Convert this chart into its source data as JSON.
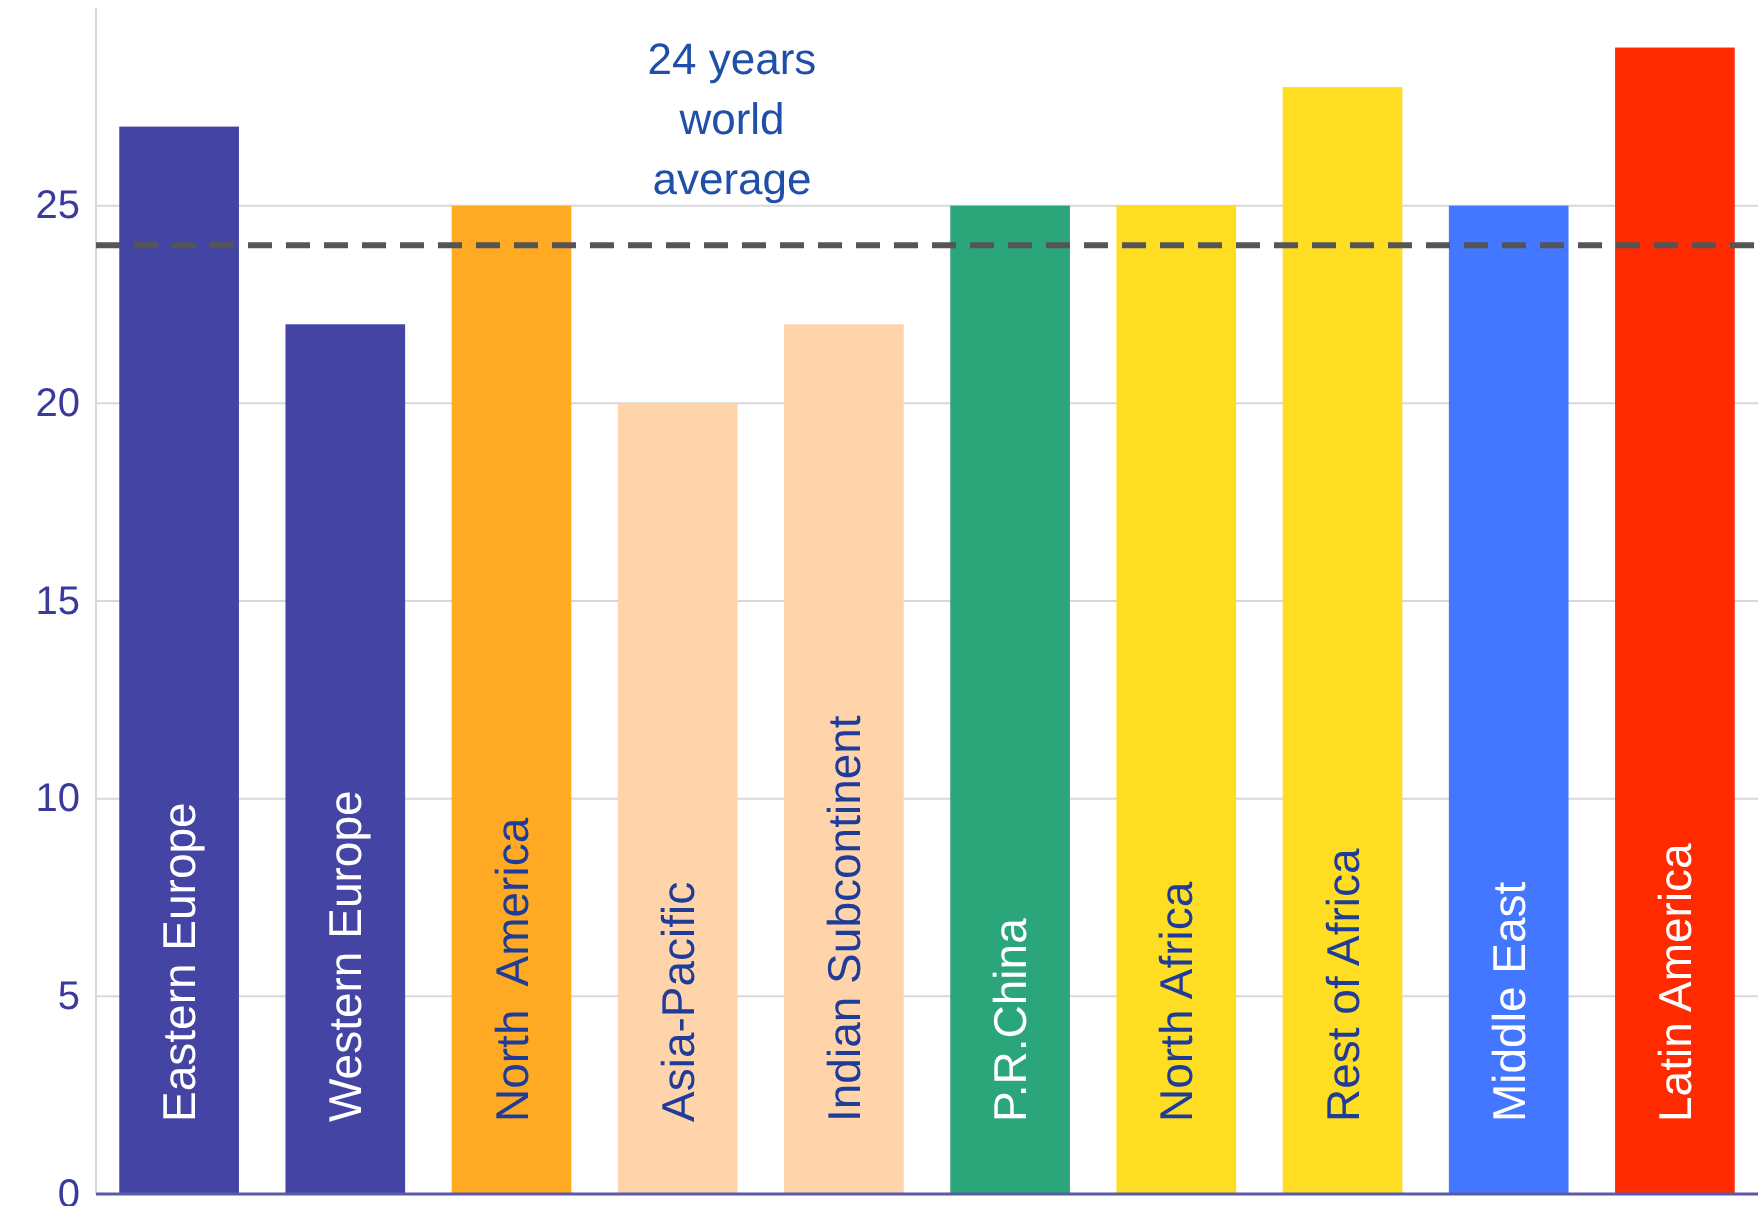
{
  "chart_data": {
    "type": "bar",
    "categories": [
      "Eastern Europe",
      "Western Europe",
      "North  America",
      "Asia-Pacific",
      "Indian Subcontinent",
      "P.R.China",
      "North Africa",
      "Rest of Africa",
      "Middle East",
      "Latin America"
    ],
    "values": [
      27,
      22,
      25,
      20,
      22,
      25,
      25,
      28,
      25,
      29
    ],
    "colors": [
      "#4444a4",
      "#4444a4",
      "#ffaa22",
      "#ffd4aa",
      "#ffd4aa",
      "#2aa67a",
      "#ffdd22",
      "#ffdd22",
      "#4477ff",
      "#ff2a00"
    ],
    "ylim": [
      0,
      30
    ],
    "yticks": [
      0,
      5,
      10,
      15,
      20,
      25
    ],
    "grid": "y",
    "ref_lines": [
      {
        "axis": "y",
        "value": 24,
        "label": "24 years world average",
        "color": "#555555",
        "line_style": "dashed"
      }
    ]
  }
}
